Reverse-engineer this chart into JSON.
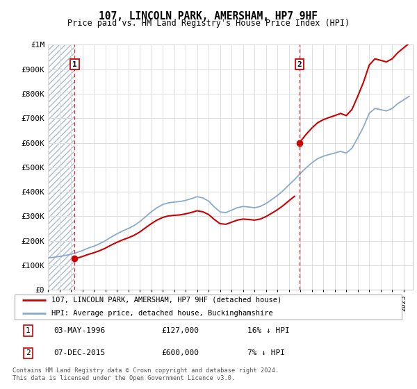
{
  "title": "107, LINCOLN PARK, AMERSHAM, HP7 9HF",
  "subtitle": "Price paid vs. HM Land Registry's House Price Index (HPI)",
  "purchase1_label": "03-MAY-1996",
  "purchase1_hpi_text": "16% ↓ HPI",
  "purchase2_label": "07-DEC-2015",
  "purchase2_hpi_text": "7% ↓ HPI",
  "legend_line1": "107, LINCOLN PARK, AMERSHAM, HP7 9HF (detached house)",
  "legend_line2": "HPI: Average price, detached house, Buckinghamshire",
  "table_row1": [
    "1",
    "03-MAY-1996",
    "£127,000",
    "16% ↓ HPI"
  ],
  "table_row2": [
    "2",
    "07-DEC-2015",
    "£600,000",
    "7% ↓ HPI"
  ],
  "footnote": "Contains HM Land Registry data © Crown copyright and database right 2024.\nThis data is licensed under the Open Government Licence v3.0.",
  "red_color": "#cc0000",
  "blue_color": "#88aacc",
  "ylim": [
    0,
    1000000
  ],
  "yticks": [
    0,
    100000,
    200000,
    300000,
    400000,
    500000,
    600000,
    700000,
    800000,
    900000,
    1000000
  ],
  "ytick_labels": [
    "£0",
    "£100K",
    "£200K",
    "£300K",
    "£400K",
    "£500K",
    "£600K",
    "£700K",
    "£800K",
    "£900K",
    "£1M"
  ],
  "xstart": 1994.0,
  "xend": 2025.8,
  "p1_year": 1996.33,
  "p2_year": 2015.92,
  "p1_price": 127000,
  "p2_price": 600000,
  "hpi_years": [
    1994.0,
    1994.5,
    1995.0,
    1995.5,
    1996.0,
    1996.5,
    1997.0,
    1997.5,
    1998.0,
    1998.5,
    1999.0,
    1999.5,
    2000.0,
    2000.5,
    2001.0,
    2001.5,
    2002.0,
    2002.5,
    2003.0,
    2003.5,
    2004.0,
    2004.5,
    2005.0,
    2005.5,
    2006.0,
    2006.5,
    2007.0,
    2007.5,
    2008.0,
    2008.5,
    2009.0,
    2009.5,
    2010.0,
    2010.5,
    2011.0,
    2011.5,
    2012.0,
    2012.5,
    2013.0,
    2013.5,
    2014.0,
    2014.5,
    2015.0,
    2015.5,
    2016.0,
    2016.5,
    2017.0,
    2017.5,
    2018.0,
    2018.5,
    2019.0,
    2019.5,
    2020.0,
    2020.5,
    2021.0,
    2021.5,
    2022.0,
    2022.5,
    2023.0,
    2023.5,
    2024.0,
    2024.5,
    2025.0,
    2025.5
  ],
  "hpi_values": [
    130000,
    133000,
    136000,
    140000,
    145000,
    152000,
    160000,
    170000,
    178000,
    188000,
    200000,
    215000,
    228000,
    240000,
    250000,
    262000,
    278000,
    298000,
    318000,
    335000,
    348000,
    355000,
    358000,
    360000,
    365000,
    372000,
    380000,
    375000,
    362000,
    338000,
    318000,
    315000,
    325000,
    335000,
    340000,
    338000,
    335000,
    340000,
    352000,
    368000,
    385000,
    405000,
    428000,
    450000,
    475000,
    498000,
    518000,
    535000,
    545000,
    552000,
    558000,
    565000,
    558000,
    578000,
    620000,
    665000,
    720000,
    740000,
    735000,
    730000,
    740000,
    760000,
    775000,
    790000
  ]
}
